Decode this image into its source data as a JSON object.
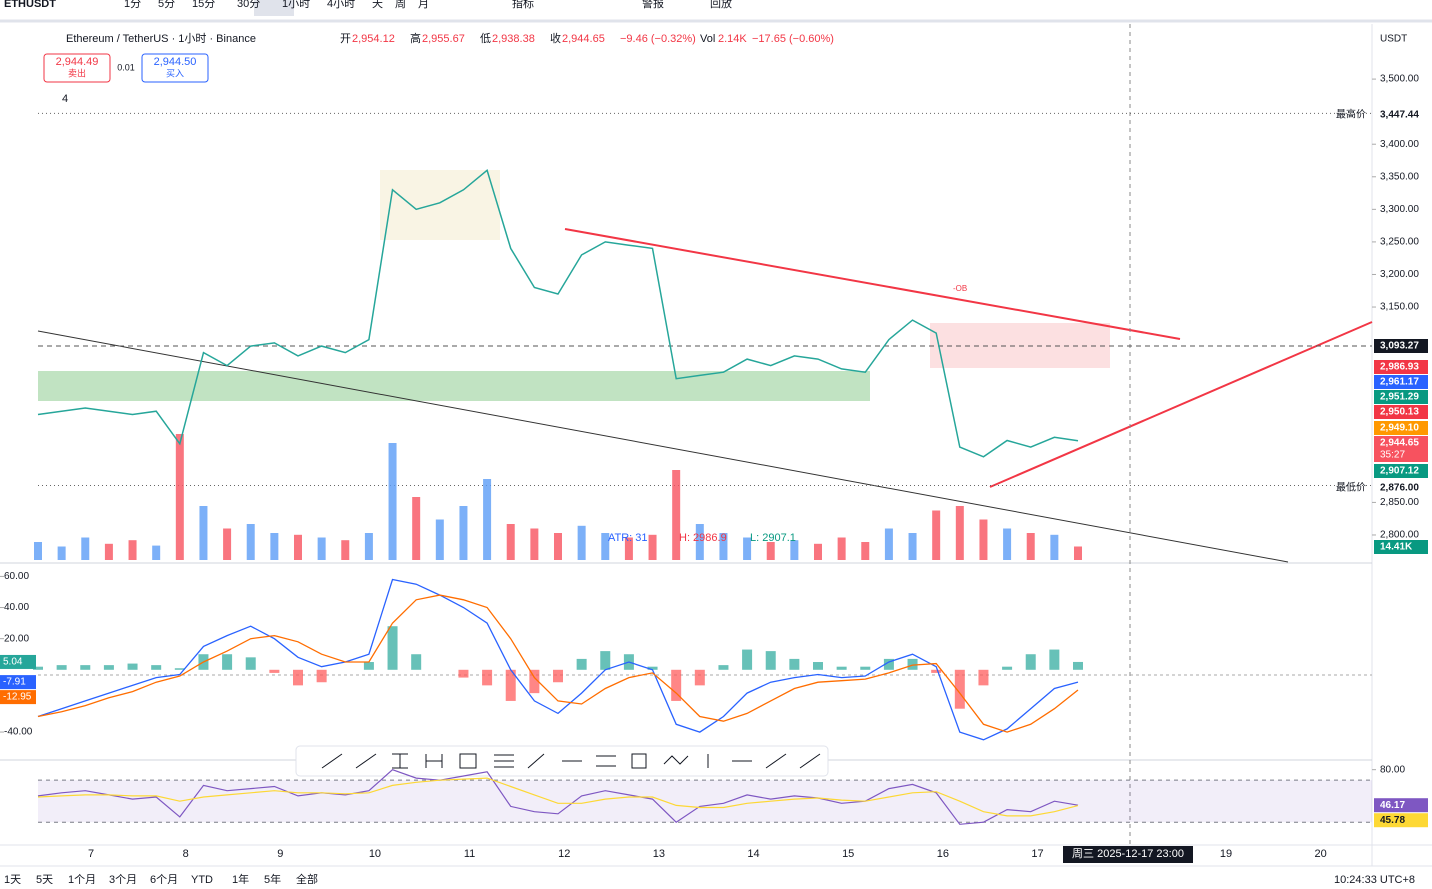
{
  "toolbar": {
    "symbol": "ETHUSDT",
    "intervals": [
      "1分",
      "5分",
      "15分",
      "30分",
      "1小时",
      "4小时",
      "天",
      "周",
      "月"
    ],
    "active_interval": 4,
    "indicators": "指标",
    "alert": "警报",
    "replay": "回放"
  },
  "legend": {
    "title": "Ethereum / TetherUS · 1小时 · Binance",
    "ohlc": [
      {
        "label": "开",
        "value": "2,954.12"
      },
      {
        "label": "高",
        "value": "2,955.67"
      },
      {
        "label": "低",
        "value": "2,938.38"
      },
      {
        "label": "收",
        "value": "2,944.65"
      }
    ],
    "change": "−9.46 (−0.32%)",
    "volume_label": "Vol",
    "volume": "2.14K",
    "volume_change": "−17.65 (−0.60%)"
  },
  "trade": {
    "sell_price": "2,944.49",
    "sell": "卖出",
    "spread": "0.01",
    "buy_price": "2,944.50",
    "buy": "买入"
  },
  "collapsed_count": "4",
  "currency": "USDT",
  "price_axis": {
    "ylim": [
      2758.5,
      3584.6
    ],
    "ticks": [
      {
        "value": 3500,
        "label": "3,500.00"
      },
      {
        "value": 3400,
        "label": "3,400.00"
      },
      {
        "value": 3350,
        "label": "3,350.00"
      },
      {
        "value": 3300,
        "label": "3,300.00"
      },
      {
        "value": 3250,
        "label": "3,250.00"
      },
      {
        "value": 3200,
        "label": "3,200.00"
      },
      {
        "value": 3150,
        "label": "3,150.00"
      },
      {
        "value": 2850,
        "label": "2,850.00"
      },
      {
        "value": 2800,
        "label": "2,800.00"
      }
    ]
  },
  "price_tags": [
    {
      "value": 3447.44,
      "label": "3,447.44",
      "tag": "最高价",
      "color": "#ffffff"
    },
    {
      "value": 3093.27,
      "label": "3,093.27",
      "color": "#131722"
    },
    {
      "value": 2986.93,
      "label": "2,986.93",
      "color": "#f23645"
    },
    {
      "value": 2961.17,
      "label": "2,961.17",
      "color": "#2962ff"
    },
    {
      "value": 2951.29,
      "label": "2,951.29",
      "color": "#089981"
    },
    {
      "value": 2950.13,
      "label": "2,950.13",
      "color": "#f23645"
    },
    {
      "value": 2949.1,
      "label": "2,949.10",
      "color": "#ff9800"
    },
    {
      "value": 2944.65,
      "label": "2,944.65",
      "countdown": "35:27",
      "color": "#f7525f"
    },
    {
      "value": 2907.12,
      "label": "2,907.12",
      "color": "#089981"
    },
    {
      "value": 2876.0,
      "label": "2,876.00",
      "tag": "最低价",
      "color": "#ffffff"
    }
  ],
  "annotations": {
    "ob": "-OB",
    "atr": "ATR: 31",
    "high": "H: 2986.9",
    "low": "L: 2907.1"
  },
  "price": {
    "closes": [
      2985,
      2990,
      2995,
      2990,
      2985,
      2990,
      2940,
      3080,
      3060,
      3090,
      3095,
      3075,
      3090,
      3080,
      3100,
      3330,
      3300,
      3310,
      3330,
      3360,
      3240,
      3180,
      3170,
      3230,
      3250,
      3245,
      3240,
      3040,
      3045,
      3050,
      3070,
      3060,
      3075,
      3070,
      3055,
      3050,
      3100,
      3130,
      3110,
      2935,
      2920,
      2945,
      2935,
      2950,
      2944.65
    ]
  },
  "volume": {
    "values": [
      20,
      15,
      25,
      18,
      22,
      16,
      140,
      60,
      35,
      40,
      30,
      28,
      25,
      22,
      30,
      130,
      70,
      45,
      60,
      90,
      40,
      35,
      30,
      38,
      30,
      25,
      28,
      100,
      40,
      30,
      25,
      20,
      22,
      18,
      25,
      20,
      35,
      30,
      55,
      60,
      45,
      35,
      30,
      28,
      15
    ],
    "ma_label": "14.41K"
  },
  "time_axis": {
    "days": [
      "7",
      "8",
      "9",
      "10",
      "11",
      "12",
      "13",
      "14",
      "15",
      "16",
      "17"
    ],
    "cursor": "周三 2025-12-17  23:00",
    "after": [
      "19",
      "20"
    ]
  },
  "macd": {
    "ylim": [
      -56.67,
      67.33
    ],
    "ticks": [
      {
        "value": 60,
        "label": "60.00"
      },
      {
        "value": 40,
        "label": "40.00"
      },
      {
        "value": 20,
        "label": "20.00"
      },
      {
        "value": -40,
        "label": "-40.00"
      }
    ],
    "tags": [
      {
        "value": 5.04,
        "label": "5.04",
        "color": "#26a69a"
      },
      {
        "value": -7.91,
        "label": "-7.91",
        "color": "#2962ff"
      },
      {
        "value": -12.95,
        "label": "-12.95",
        "color": "#ff6d00"
      }
    ],
    "macd": [
      -30,
      -25,
      -20,
      -15,
      -10,
      -5,
      -3,
      15,
      22,
      28,
      20,
      8,
      2,
      5,
      10,
      58,
      55,
      48,
      40,
      30,
      0,
      -20,
      -28,
      -15,
      0,
      5,
      0,
      -35,
      -40,
      -30,
      -15,
      -8,
      -5,
      -3,
      -5,
      -4,
      5,
      10,
      2,
      -40,
      -45,
      -38,
      -25,
      -12,
      -7.91
    ],
    "signal": [
      -30,
      -27,
      -23,
      -18,
      -14,
      -8,
      -4,
      5,
      12,
      20,
      22,
      18,
      10,
      5,
      5,
      30,
      45,
      48,
      45,
      40,
      20,
      -5,
      -20,
      -22,
      -12,
      -5,
      -2,
      -15,
      -30,
      -33,
      -28,
      -20,
      -12,
      -8,
      -7,
      -6,
      -2,
      3,
      4,
      -15,
      -35,
      -40,
      -35,
      -25,
      -12.95
    ],
    "hist": [
      2,
      3,
      3,
      3,
      4,
      3,
      1,
      10,
      10,
      8,
      -2,
      -10,
      -8,
      0,
      5,
      28,
      10,
      0,
      -5,
      -10,
      -20,
      -15,
      -8,
      7,
      12,
      10,
      2,
      -20,
      -10,
      3,
      13,
      12,
      7,
      5,
      2,
      2,
      7,
      7,
      -2,
      -25,
      -10,
      2,
      10,
      13,
      5.04
    ]
  },
  "rsi": {
    "ylim": [
      8.3,
      87.3
    ],
    "bands": [
      30,
      70
    ],
    "ticks": [
      {
        "value": 80,
        "label": "80.00"
      }
    ],
    "tags": [
      {
        "value": 46.17,
        "label": "46.17",
        "color": "#7e57c2"
      },
      {
        "value": 45.78,
        "label": "45.78",
        "color": "#fdd835"
      }
    ],
    "rsi": [
      55,
      58,
      60,
      56,
      52,
      54,
      35,
      65,
      60,
      62,
      64,
      55,
      58,
      56,
      60,
      80,
      72,
      70,
      74,
      78,
      45,
      40,
      38,
      55,
      60,
      56,
      52,
      30,
      45,
      48,
      56,
      52,
      55,
      53,
      48,
      50,
      62,
      66,
      58,
      28,
      30,
      42,
      40,
      50,
      46.17
    ],
    "ma": [
      54,
      55,
      56,
      56,
      55,
      55,
      50,
      54,
      56,
      58,
      60,
      58,
      58,
      57,
      58,
      65,
      68,
      70,
      71,
      72,
      64,
      56,
      48,
      48,
      52,
      54,
      54,
      46,
      44,
      44,
      48,
      50,
      52,
      53,
      51,
      50,
      54,
      58,
      59,
      50,
      40,
      36,
      36,
      40,
      45.78
    ]
  },
  "bottom": {
    "ranges": [
      "1天",
      "5天",
      "1个月",
      "3个月",
      "6个月",
      "YTD",
      "1年",
      "5年",
      "全部"
    ],
    "clock": "10:24:33 UTC+8"
  }
}
